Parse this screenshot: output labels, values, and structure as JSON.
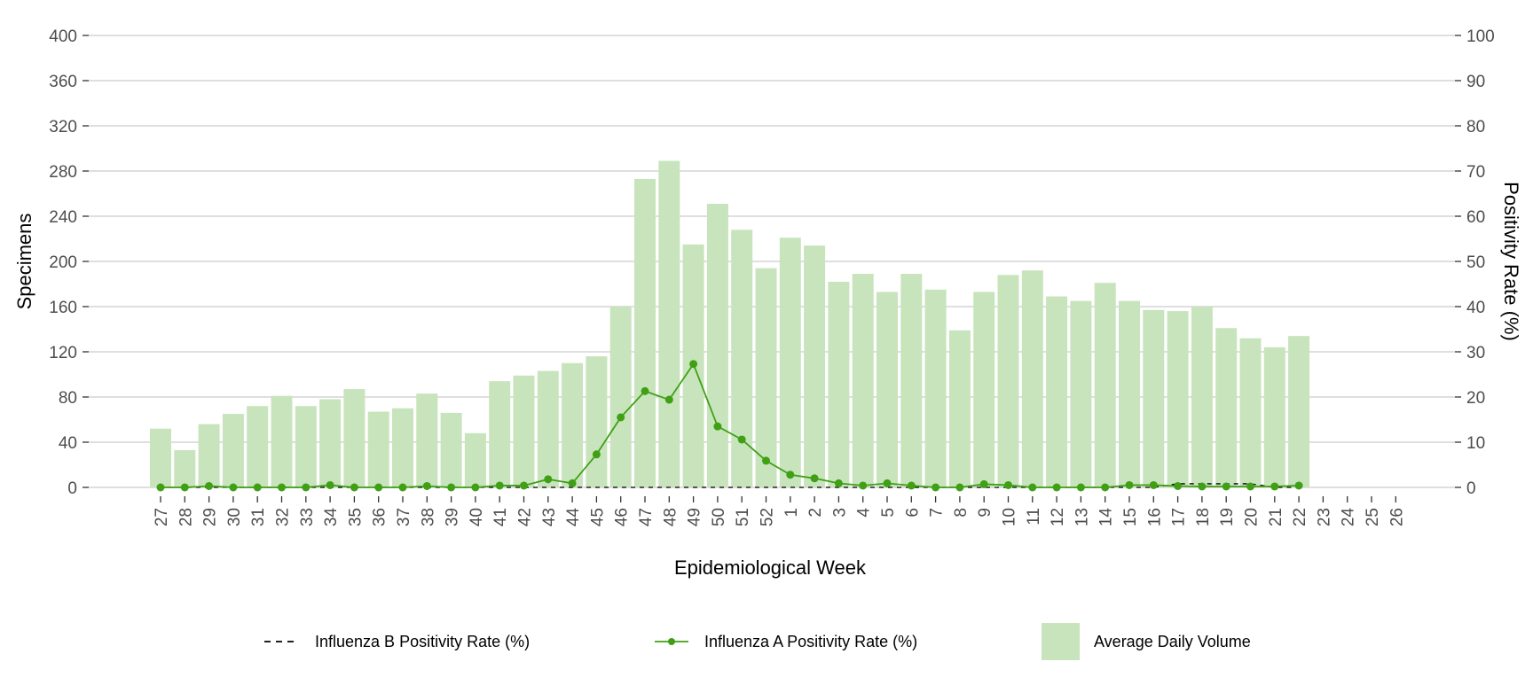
{
  "chart_data": {
    "type": "bar+line",
    "xlabel": "Epidemiological Week",
    "ylabel": "Specimens",
    "y2label": "Positivity Rate (%)",
    "ylim": [
      0,
      400
    ],
    "y2lim": [
      0,
      100
    ],
    "yticks": [
      0,
      40,
      80,
      120,
      160,
      200,
      240,
      280,
      320,
      360,
      400
    ],
    "y2ticks": [
      0,
      10,
      20,
      30,
      40,
      50,
      60,
      70,
      80,
      90,
      100
    ],
    "grid": true,
    "legend_position": "bottom",
    "categories": [
      "27",
      "28",
      "29",
      "30",
      "31",
      "32",
      "33",
      "34",
      "35",
      "36",
      "37",
      "38",
      "39",
      "40",
      "41",
      "42",
      "43",
      "44",
      "45",
      "46",
      "47",
      "48",
      "49",
      "50",
      "51",
      "52",
      "1",
      "2",
      "3",
      "4",
      "5",
      "6",
      "7",
      "8",
      "9",
      "10",
      "11",
      "12",
      "13",
      "14",
      "15",
      "16",
      "17",
      "18",
      "19",
      "20",
      "21",
      "22",
      "23",
      "24",
      "25",
      "26"
    ],
    "series": [
      {
        "name": "Average Daily Volume",
        "type": "bar",
        "axis": "left",
        "color": "#c8e4bc",
        "values": [
          52,
          33,
          56,
          65,
          72,
          81,
          72,
          78,
          87,
          67,
          70,
          83,
          66,
          48,
          94,
          99,
          103,
          110,
          116,
          160,
          273,
          289,
          215,
          251,
          228,
          194,
          221,
          214,
          182,
          189,
          173,
          189,
          175,
          139,
          173,
          188,
          192,
          169,
          165,
          181,
          165,
          157,
          156,
          160,
          141,
          132,
          124,
          134,
          null,
          null,
          null,
          null
        ]
      },
      {
        "name": "Influenza A Positivity Rate (%)",
        "type": "line",
        "axis": "right",
        "color": "#3fa015",
        "values": [
          0,
          0,
          0.3,
          0,
          0,
          0,
          0,
          0.5,
          0,
          0,
          0,
          0.3,
          0,
          0,
          0.4,
          0.4,
          1.8,
          0.9,
          7.3,
          15.5,
          21.3,
          19.4,
          27.3,
          13.5,
          10.6,
          5.9,
          2.8,
          2.0,
          0.9,
          0.4,
          0.9,
          0.4,
          0,
          0,
          0.7,
          0.5,
          0,
          0,
          0,
          0,
          0.5,
          0.5,
          0.3,
          0.2,
          0.2,
          0.2,
          0.2,
          0.4,
          null,
          null,
          null,
          null
        ]
      },
      {
        "name": "Influenza B Positivity Rate (%)",
        "type": "line-dashed",
        "axis": "right",
        "color": "#000000",
        "values": [
          0,
          0,
          0,
          0,
          0,
          0,
          0,
          0,
          0,
          0,
          0,
          0,
          0,
          0,
          0,
          0,
          0,
          0,
          0,
          0,
          0,
          0,
          0,
          0,
          0,
          0,
          0,
          0,
          0,
          0,
          0,
          0,
          0,
          0,
          0,
          0,
          0,
          0,
          0,
          0,
          0,
          0,
          0.8,
          0.8,
          0.8,
          0.8,
          0,
          0,
          null,
          null,
          null,
          null
        ]
      }
    ]
  }
}
